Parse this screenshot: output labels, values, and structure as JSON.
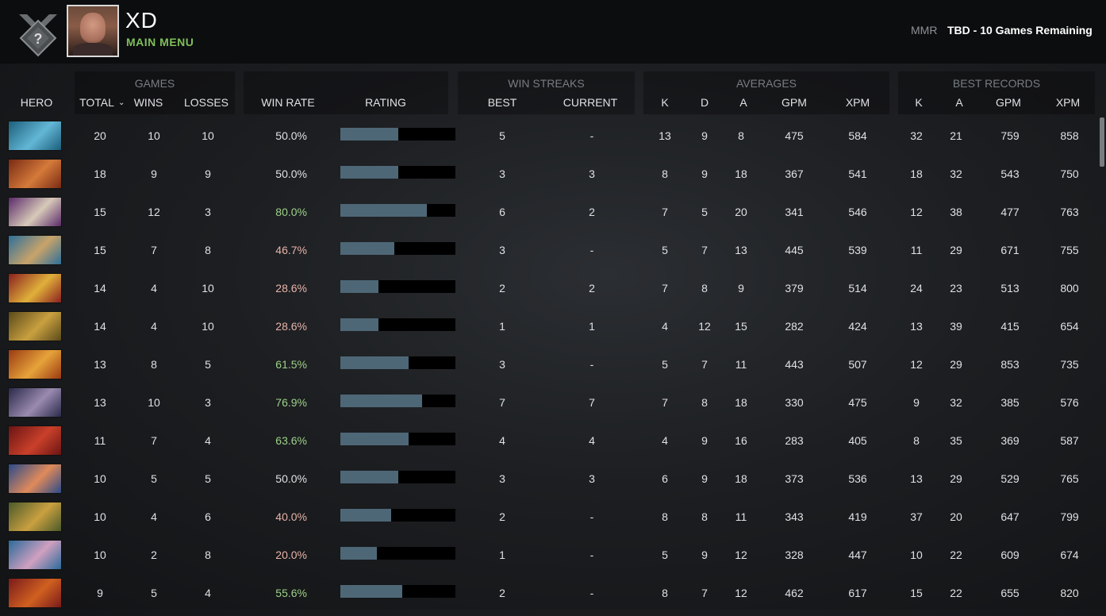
{
  "profile": {
    "name": "XD",
    "main_menu": "MAIN MENU",
    "mmr_label": "MMR",
    "mmr_value": "TBD - 10 Games Remaining"
  },
  "groups": {
    "games": "GAMES",
    "win_streaks": "WIN STREAKS",
    "averages": "AVERAGES",
    "best_records": "BEST RECORDS"
  },
  "columns": {
    "hero": "HERO",
    "total": "TOTAL",
    "wins": "WINS",
    "losses": "LOSSES",
    "win_rate": "WIN RATE",
    "rating": "RATING",
    "best": "BEST",
    "current": "CURRENT",
    "avg_k": "K",
    "avg_d": "D",
    "avg_a": "A",
    "avg_gpm": "GPM",
    "avg_xpm": "XPM",
    "best_k": "K",
    "best_a": "A",
    "best_gpm": "GPM",
    "best_xpm": "XPM"
  },
  "colors": {
    "winrate_high": "#9fd08a",
    "winrate_mid": "#dfe1e4",
    "winrate_low": "#e7b3a8",
    "rating_bar": "#4e6777",
    "main_menu": "#7fbf5a"
  },
  "heroes": [
    {
      "portrait": "hero-portrait-1",
      "colors": [
        "#1b5e7a",
        "#63b7d6"
      ],
      "total": "20",
      "wins": "10",
      "losses": "10",
      "win_rate": "50.0%",
      "rating": 0.5,
      "best": "5",
      "current": "-",
      "k": "13",
      "d": "9",
      "a": "8",
      "gpm": "475",
      "xpm": "584",
      "bk": "32",
      "ba": "21",
      "bgpm": "759",
      "bxpm": "858"
    },
    {
      "portrait": "hero-portrait-2",
      "colors": [
        "#7a2a14",
        "#d47a3a"
      ],
      "total": "18",
      "wins": "9",
      "losses": "9",
      "win_rate": "50.0%",
      "rating": 0.5,
      "best": "3",
      "current": "3",
      "k": "8",
      "d": "9",
      "a": "18",
      "gpm": "367",
      "xpm": "541",
      "bk": "18",
      "ba": "32",
      "bgpm": "543",
      "bxpm": "750"
    },
    {
      "portrait": "hero-portrait-3",
      "colors": [
        "#5a2a6a",
        "#d7c9b8"
      ],
      "total": "15",
      "wins": "12",
      "losses": "3",
      "win_rate": "80.0%",
      "rating": 0.75,
      "best": "6",
      "current": "2",
      "k": "7",
      "d": "5",
      "a": "20",
      "gpm": "341",
      "xpm": "546",
      "bk": "12",
      "ba": "38",
      "bgpm": "477",
      "bxpm": "763"
    },
    {
      "portrait": "hero-portrait-4",
      "colors": [
        "#2c6f9a",
        "#c9a36a"
      ],
      "total": "15",
      "wins": "7",
      "losses": "8",
      "win_rate": "46.7%",
      "rating": 0.47,
      "best": "3",
      "current": "-",
      "k": "5",
      "d": "7",
      "a": "13",
      "gpm": "445",
      "xpm": "539",
      "bk": "11",
      "ba": "29",
      "bgpm": "671",
      "bxpm": "755"
    },
    {
      "portrait": "hero-portrait-5",
      "colors": [
        "#8a1f1f",
        "#e0b03a"
      ],
      "total": "14",
      "wins": "4",
      "losses": "10",
      "win_rate": "28.6%",
      "rating": 0.33,
      "best": "2",
      "current": "2",
      "k": "7",
      "d": "8",
      "a": "9",
      "gpm": "379",
      "xpm": "514",
      "bk": "24",
      "ba": "23",
      "bgpm": "513",
      "bxpm": "800"
    },
    {
      "portrait": "hero-portrait-6",
      "colors": [
        "#5a4a1a",
        "#c9a040"
      ],
      "total": "14",
      "wins": "4",
      "losses": "10",
      "win_rate": "28.6%",
      "rating": 0.33,
      "best": "1",
      "current": "1",
      "k": "4",
      "d": "12",
      "a": "15",
      "gpm": "282",
      "xpm": "424",
      "bk": "13",
      "ba": "39",
      "bgpm": "415",
      "bxpm": "654"
    },
    {
      "portrait": "hero-portrait-7",
      "colors": [
        "#9a3a12",
        "#e7a33a"
      ],
      "total": "13",
      "wins": "8",
      "losses": "5",
      "win_rate": "61.5%",
      "rating": 0.59,
      "best": "3",
      "current": "-",
      "k": "5",
      "d": "7",
      "a": "11",
      "gpm": "443",
      "xpm": "507",
      "bk": "12",
      "ba": "29",
      "bgpm": "853",
      "bxpm": "735"
    },
    {
      "portrait": "hero-portrait-8",
      "colors": [
        "#2a2a4a",
        "#9a8ab0"
      ],
      "total": "13",
      "wins": "10",
      "losses": "3",
      "win_rate": "76.9%",
      "rating": 0.71,
      "best": "7",
      "current": "7",
      "k": "7",
      "d": "8",
      "a": "18",
      "gpm": "330",
      "xpm": "475",
      "bk": "9",
      "ba": "32",
      "bgpm": "385",
      "bxpm": "576"
    },
    {
      "portrait": "hero-portrait-9",
      "colors": [
        "#6a1414",
        "#c9402a"
      ],
      "total": "11",
      "wins": "7",
      "losses": "4",
      "win_rate": "63.6%",
      "rating": 0.59,
      "best": "4",
      "current": "4",
      "k": "4",
      "d": "9",
      "a": "16",
      "gpm": "283",
      "xpm": "405",
      "bk": "8",
      "ba": "35",
      "bgpm": "369",
      "bxpm": "587"
    },
    {
      "portrait": "hero-portrait-10",
      "colors": [
        "#2a4a8a",
        "#e08a5a"
      ],
      "total": "10",
      "wins": "5",
      "losses": "5",
      "win_rate": "50.0%",
      "rating": 0.5,
      "best": "3",
      "current": "3",
      "k": "6",
      "d": "9",
      "a": "18",
      "gpm": "373",
      "xpm": "536",
      "bk": "13",
      "ba": "29",
      "bgpm": "529",
      "bxpm": "765"
    },
    {
      "portrait": "hero-portrait-11",
      "colors": [
        "#4a5a2a",
        "#c9a040"
      ],
      "total": "10",
      "wins": "4",
      "losses": "6",
      "win_rate": "40.0%",
      "rating": 0.44,
      "best": "2",
      "current": "-",
      "k": "8",
      "d": "8",
      "a": "11",
      "gpm": "343",
      "xpm": "419",
      "bk": "37",
      "ba": "20",
      "bgpm": "647",
      "bxpm": "799"
    },
    {
      "portrait": "hero-portrait-12",
      "colors": [
        "#2a6a9a",
        "#d0a0c0"
      ],
      "total": "10",
      "wins": "2",
      "losses": "8",
      "win_rate": "20.0%",
      "rating": 0.32,
      "best": "1",
      "current": "-",
      "k": "5",
      "d": "9",
      "a": "12",
      "gpm": "328",
      "xpm": "447",
      "bk": "10",
      "ba": "22",
      "bgpm": "609",
      "bxpm": "674"
    },
    {
      "portrait": "hero-portrait-13",
      "colors": [
        "#7a1a1a",
        "#d06020"
      ],
      "total": "9",
      "wins": "5",
      "losses": "4",
      "win_rate": "55.6%",
      "rating": 0.54,
      "best": "2",
      "current": "-",
      "k": "8",
      "d": "7",
      "a": "12",
      "gpm": "462",
      "xpm": "617",
      "bk": "15",
      "ba": "22",
      "bgpm": "655",
      "bxpm": "820"
    }
  ]
}
